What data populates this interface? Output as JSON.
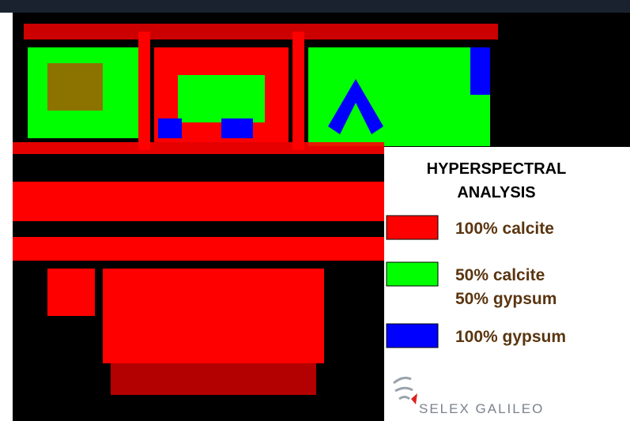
{
  "legend": {
    "title": [
      "HYPERSPECTRAL",
      "ANALYSIS"
    ],
    "items": [
      {
        "color": "#ff0000",
        "lines": [
          "100% calcite"
        ]
      },
      {
        "color": "#00ff00",
        "lines": [
          "50% calcite",
          "50% gypsum"
        ]
      },
      {
        "color": "#0000ff",
        "lines": [
          "100% gypsum"
        ]
      }
    ]
  },
  "logo": {
    "text": "SELEX GALILEO"
  }
}
